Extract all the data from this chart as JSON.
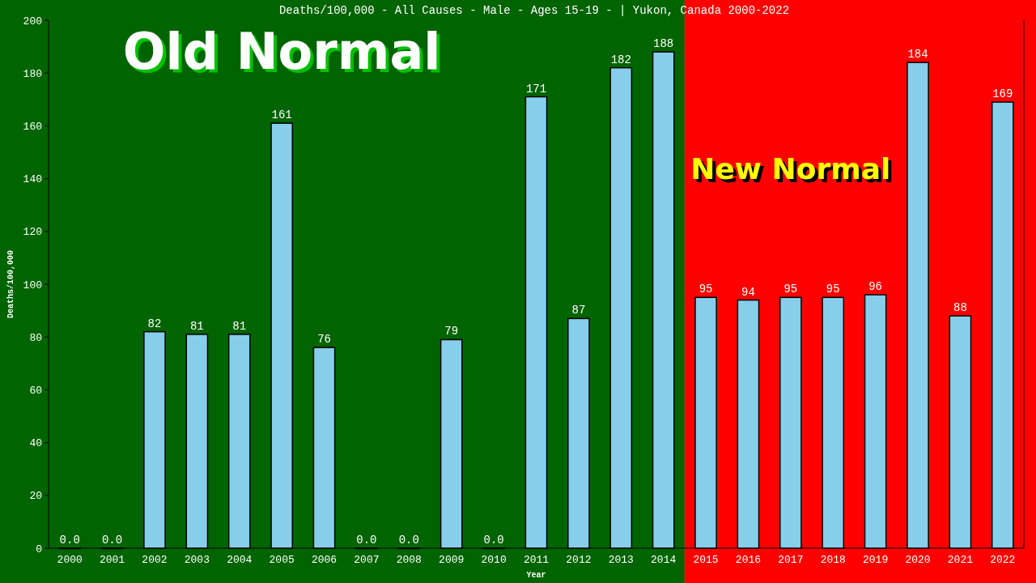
{
  "chart_data": {
    "type": "bar",
    "title": "Deaths/100,000 - All Causes - Male - Ages 15-19 -  | Yukon, Canada 2000-2022",
    "xlabel": "Year",
    "ylabel": "Deaths/100,000",
    "categories": [
      "2000",
      "2001",
      "2002",
      "2003",
      "2004",
      "2005",
      "2006",
      "2007",
      "2008",
      "2009",
      "2010",
      "2011",
      "2012",
      "2013",
      "2014",
      "2015",
      "2016",
      "2017",
      "2018",
      "2019",
      "2020",
      "2021",
      "2022"
    ],
    "values": [
      0,
      0,
      82,
      81,
      81,
      161,
      76,
      0,
      0,
      79,
      0,
      171,
      87,
      182,
      188,
      95,
      94,
      95,
      95,
      96,
      184,
      88,
      169
    ],
    "value_labels": [
      "0.0",
      "0.0",
      "82",
      "81",
      "81",
      "161",
      "76",
      "0.0",
      "0.0",
      "79",
      "0.0",
      "171",
      "87",
      "182",
      "188",
      "95",
      "94",
      "95",
      "95",
      "96",
      "184",
      "88",
      "169"
    ],
    "color": "#87ceeb",
    "ylim": [
      0,
      200
    ],
    "yticks": [
      0,
      20,
      40,
      60,
      80,
      100,
      120,
      140,
      160,
      180,
      200
    ],
    "grid": false,
    "bands": [
      {
        "axis": "x",
        "from": "2000",
        "to": "2014",
        "label": "Old Normal",
        "color": "#006400"
      },
      {
        "axis": "x",
        "from": "2015",
        "to": "2022",
        "label": "New Normal",
        "color": "#ff0000"
      }
    ]
  }
}
